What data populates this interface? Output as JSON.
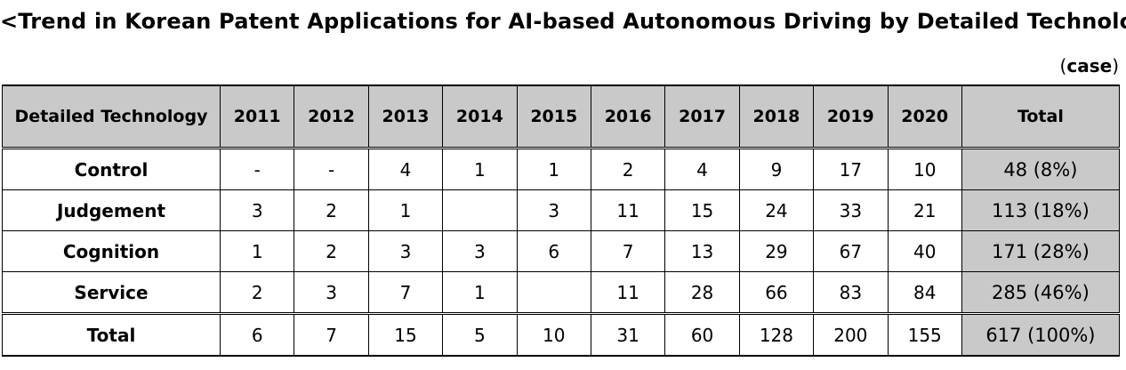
{
  "title": "<Trend in Korean Patent Applications for AI-based Autonomous Driving by Detailed Technology>",
  "unit": {
    "open": "(",
    "label": "case",
    "close": ")"
  },
  "chart_data": {
    "type": "table",
    "columns": [
      "Detailed Technology",
      "2011",
      "2012",
      "2013",
      "2014",
      "2015",
      "2016",
      "2017",
      "2018",
      "2019",
      "2020",
      "Total"
    ],
    "rows": [
      {
        "label": "Control",
        "values": [
          "-",
          "-",
          "4",
          "1",
          "1",
          "2",
          "4",
          "9",
          "17",
          "10"
        ],
        "total": "48 (8%)"
      },
      {
        "label": "Judgement",
        "values": [
          "3",
          "2",
          "1",
          "",
          "3",
          "11",
          "15",
          "24",
          "33",
          "21"
        ],
        "total": "113 (18%)"
      },
      {
        "label": "Cognition",
        "values": [
          "1",
          "2",
          "3",
          "3",
          "6",
          "7",
          "13",
          "29",
          "67",
          "40"
        ],
        "total": "171 (28%)"
      },
      {
        "label": "Service",
        "values": [
          "2",
          "3",
          "7",
          "1",
          "",
          "11",
          "28",
          "66",
          "83",
          "84"
        ],
        "total": "285 (46%)"
      }
    ],
    "total_row": {
      "label": "Total",
      "values": [
        "6",
        "7",
        "15",
        "5",
        "10",
        "31",
        "60",
        "128",
        "200",
        "155"
      ],
      "total": "617 (100%)"
    },
    "header_bg": "#c9c9c9",
    "total_col_bg": "#c9c9c9"
  }
}
